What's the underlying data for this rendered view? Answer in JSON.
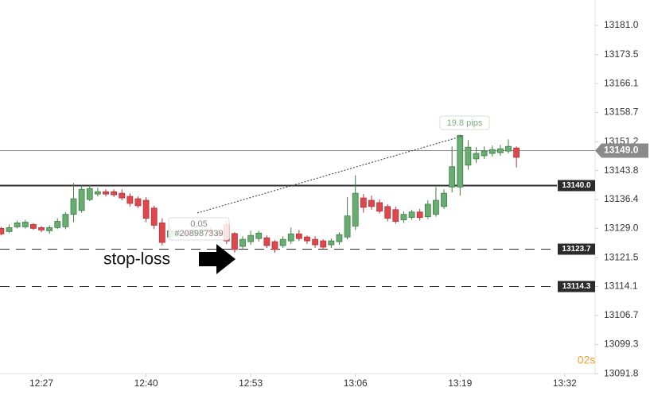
{
  "chart_data": {
    "type": "candlestick",
    "x": [
      22,
      23,
      24,
      25,
      26,
      27,
      28,
      29,
      30,
      31,
      32,
      33,
      34,
      35,
      36,
      37,
      38,
      39,
      40,
      41,
      42,
      43,
      44,
      45,
      46,
      47,
      48,
      49,
      50,
      51,
      52,
      53,
      54,
      55,
      56,
      57,
      58,
      59,
      60,
      61,
      62,
      63,
      64,
      65,
      66,
      67,
      68,
      69,
      70,
      71,
      72,
      73,
      74,
      75,
      76,
      77,
      78,
      79,
      80,
      81,
      82,
      83,
      84,
      85,
      86
    ],
    "open": [
      13129.0,
      13128.2,
      13129.4,
      13129.4,
      13130.0,
      13129.2,
      13128.4,
      13129.2,
      13129.4,
      13132.6,
      13133.6,
      13136.4,
      13137.8,
      13138.4,
      13138.4,
      13138.0,
      13137.2,
      13136.6,
      13136.2,
      13134.2,
      13130.4,
      13126.8,
      13127.0,
      13128.0,
      13127.4,
      13128.2,
      13128.6,
      13128.0,
      13130.0,
      13127.7,
      13124.4,
      13125.6,
      13126.4,
      13126.6,
      13125.6,
      13124.6,
      13125.8,
      13127.6,
      13126.8,
      13126.2,
      13125.8,
      13124.8,
      13125.6,
      13126.8,
      13129.6,
      13136.8,
      13136.2,
      13135.6,
      13134.6,
      13133.8,
      13131.2,
      13131.8,
      13133.2,
      13132.0,
      13132.6,
      13134.6,
      13139.6,
      13139.6,
      13145.2,
      13146.8,
      13147.6,
      13148.2,
      13148.4,
      13148.8,
      13149.6
    ],
    "high": [
      13129.4,
      13130.0,
      13131.0,
      13131.2,
      13130.4,
      13129.6,
      13129.8,
      13131.6,
      13133.2,
      13140.6,
      13140.0,
      13140.2,
      13139.4,
      13139.0,
      13139.0,
      13139.0,
      13138.0,
      13137.2,
      13137.0,
      13134.8,
      13131.6,
      13129.4,
      13128.8,
      13128.6,
      13131.0,
      13130.0,
      13129.2,
      13128.6,
      13131.0,
      13128.0,
      13127.0,
      13128.4,
      13128.4,
      13127.2,
      13126.0,
      13127.0,
      13129.2,
      13128.6,
      13127.2,
      13127.0,
      13126.2,
      13126.4,
      13128.0,
      13137.0,
      13142.6,
      13137.8,
      13137.4,
      13136.4,
      13135.2,
      13134.6,
      13133.4,
      13133.8,
      13134.0,
      13136.2,
      13139.6,
      13139.0,
      13150.0,
      13153.0,
      13151.6,
      13149.8,
      13150.0,
      13150.2,
      13150.4,
      13151.8,
      13150.0
    ],
    "low": [
      13127.2,
      13127.8,
      13129.0,
      13129.0,
      13128.6,
      13128.0,
      13127.6,
      13128.8,
      13128.8,
      13130.6,
      13133.0,
      13136.0,
      13137.2,
      13137.2,
      13137.0,
      13136.2,
      13134.6,
      13134.2,
      13130.6,
      13128.8,
      13124.6,
      13126.0,
      13126.4,
      13126.8,
      13126.8,
      13127.6,
      13127.4,
      13126.6,
      13125.0,
      13122.8,
      13123.6,
      13124.8,
      13125.6,
      13124.0,
      13122.8,
      13124.0,
      13125.0,
      13125.8,
      13125.0,
      13124.0,
      13123.6,
      13124.0,
      13124.8,
      13126.2,
      13128.6,
      13133.0,
      13133.8,
      13132.8,
      13130.8,
      13130.2,
      13130.4,
      13131.2,
      13131.0,
      13131.4,
      13132.0,
      13134.0,
      13138.2,
      13137.4,
      13144.0,
      13145.8,
      13146.8,
      13147.4,
      13147.6,
      13148.2,
      13144.6
    ],
    "close": [
      13127.6,
      13129.2,
      13130.4,
      13130.6,
      13129.0,
      13128.6,
      13129.2,
      13130.8,
      13132.6,
      13136.6,
      13139.0,
      13139.2,
      13138.4,
      13137.8,
      13137.6,
      13136.8,
      13135.4,
      13134.8,
      13131.6,
      13129.8,
      13125.4,
      13128.4,
      13128.2,
      13127.4,
      13128.6,
      13128.8,
      13128.0,
      13127.2,
      13125.8,
      13123.6,
      13126.2,
      13127.2,
      13127.8,
      13124.6,
      13123.6,
      13126.2,
      13127.6,
      13126.4,
      13125.8,
      13124.8,
      13124.2,
      13125.8,
      13127.4,
      13132.2,
      13138.0,
      13134.4,
      13134.6,
      13133.4,
      13131.6,
      13130.8,
      13132.6,
      13133.2,
      13131.8,
      13135.2,
      13136.2,
      13138.0,
      13144.8,
      13152.8,
      13149.8,
      13148.2,
      13148.8,
      13149.2,
      13149.4,
      13150.0,
      13147.2
    ],
    "up_color": "#6aad72",
    "down_color": "#e0474c",
    "xlim": [
      21.86,
      95.77
    ],
    "xticks": [
      {
        "value": 27,
        "label": "12:27"
      },
      {
        "value": 40,
        "label": "12:40"
      },
      {
        "value": 53,
        "label": "12:53"
      },
      {
        "value": 66,
        "label": "13:06"
      },
      {
        "value": 79,
        "label": "13:19"
      },
      {
        "value": 92,
        "label": "13:32"
      }
    ],
    "ylim": [
      13090.6,
      13187.5
    ],
    "yticks": [
      {
        "value": 13181.0,
        "label": "13181.0"
      },
      {
        "value": 13173.5,
        "label": "13173.5"
      },
      {
        "value": 13166.1,
        "label": "13166.1"
      },
      {
        "value": 13158.7,
        "label": "13158.7"
      },
      {
        "value": 13151.2,
        "label": "13151.2"
      },
      {
        "value": 13143.8,
        "label": "13143.8"
      },
      {
        "value": 13136.4,
        "label": "13136.4"
      },
      {
        "value": 13129.0,
        "label": "13129.0"
      },
      {
        "value": 13121.5,
        "label": "13121.5"
      },
      {
        "value": 13114.1,
        "label": "13114.1"
      },
      {
        "value": 13106.7,
        "label": "13106.7"
      },
      {
        "value": 13099.3,
        "label": "13099.3"
      },
      {
        "value": 13091.8,
        "label": "13091.8"
      }
    ],
    "price_lines": [
      {
        "value": 13149.0,
        "label": "13149.0",
        "style": "current",
        "color": "#8a8a8a"
      },
      {
        "value": 13140.0,
        "label": "13140.0",
        "style": "solid",
        "color": "#2b2b2b"
      },
      {
        "value": 13123.7,
        "label": "13123.7",
        "style": "dashed",
        "color": "#2b2b2b"
      },
      {
        "value": 13114.3,
        "label": "13114.3",
        "style": "dashed",
        "color": "#2b2b2b"
      }
    ],
    "annotations": {
      "measure": "19.8 pips",
      "order_size": "0.05",
      "order_id": "#208987339",
      "stop_loss": "stop-loss",
      "timer": "02s"
    }
  }
}
